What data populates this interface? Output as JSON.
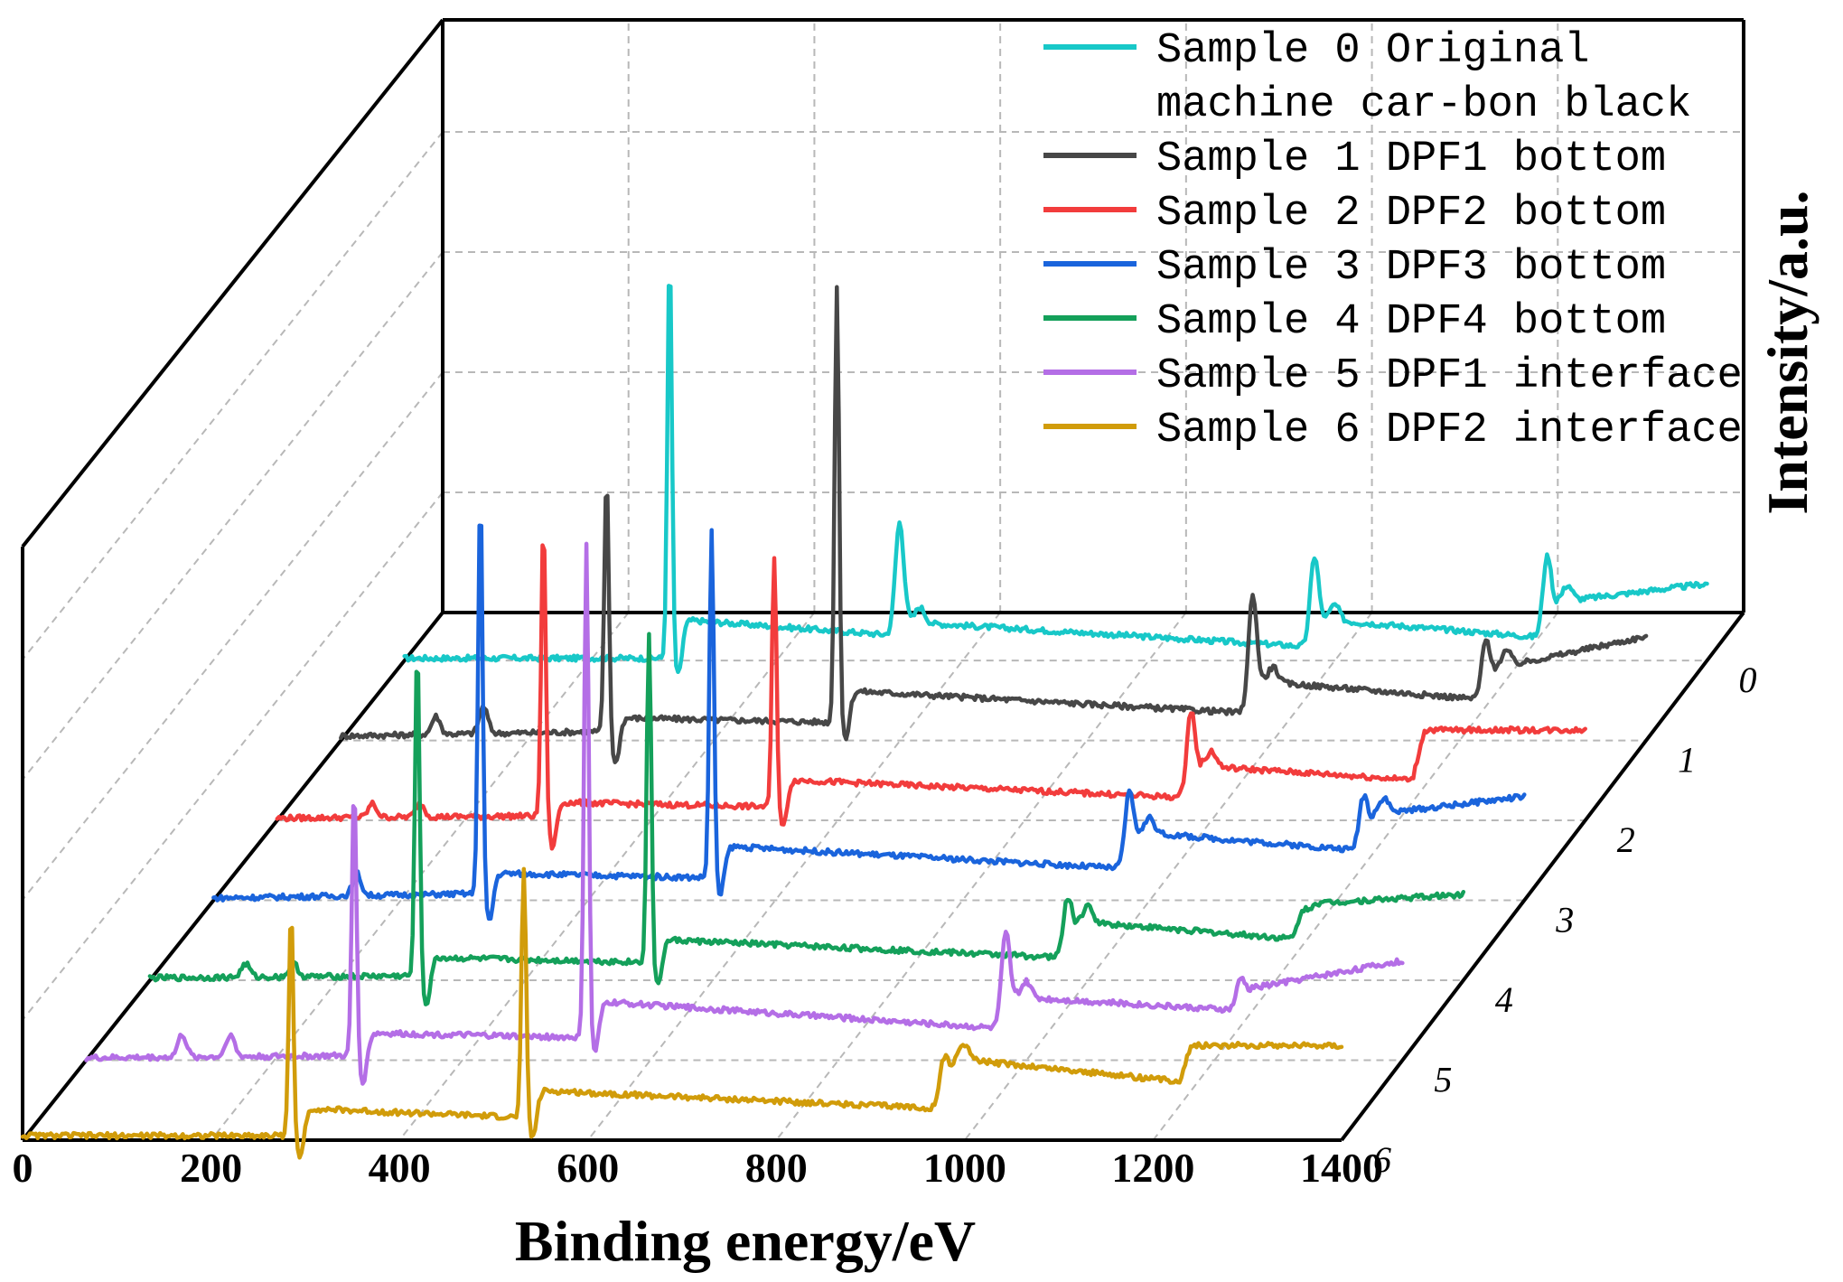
{
  "chart_data": {
    "type": "line",
    "subtype": "3d-waterfall",
    "title": "",
    "xlabel": "Binding energy/eV",
    "ylabel": "Intensity/a.u.",
    "xlim": [
      0,
      1400
    ],
    "x_ticks": [
      "0",
      "200",
      "400",
      "600",
      "800",
      "1000",
      "1200",
      "1400"
    ],
    "depth_ticks": [
      "0",
      "1",
      "2",
      "3",
      "4",
      "5",
      "6"
    ],
    "grid": true,
    "legend_position": "top-right",
    "series": [
      {
        "name": "Sample 0 Original machine car-bon black",
        "legend_lines": [
          "Sample 0 Original",
          "machine car-bon black"
        ],
        "color": "#18c8c8",
        "depth": 0,
        "peaks": [
          {
            "x": 285,
            "height": 9.0
          },
          {
            "x": 532,
            "height": 2.5
          },
          {
            "x": 978,
            "height": 2.0
          },
          {
            "x": 1228,
            "height": 1.8
          }
        ],
        "baseline_levels": [
          {
            "x": 0,
            "y": 0.05
          },
          {
            "x": 285,
            "y": 0.05
          },
          {
            "x": 300,
            "y": 0.9
          },
          {
            "x": 532,
            "y": 0.55
          },
          {
            "x": 540,
            "y": 0.85
          },
          {
            "x": 978,
            "y": 0.3
          },
          {
            "x": 990,
            "y": 0.9
          },
          {
            "x": 1228,
            "y": 0.5
          },
          {
            "x": 1240,
            "y": 1.3
          },
          {
            "x": 1400,
            "y": 1.7
          }
        ]
      },
      {
        "name": "Sample 1 DPF1 bottom",
        "legend_lines": [
          "Sample 1 DPF1 bottom"
        ],
        "color": "#474747",
        "depth": 1,
        "peaks": [
          {
            "x": 102,
            "height": 0.4
          },
          {
            "x": 153,
            "height": 0.6
          },
          {
            "x": 285,
            "height": 5.7
          },
          {
            "x": 532,
            "height": 9.7
          },
          {
            "x": 978,
            "height": 2.6
          },
          {
            "x": 1228,
            "height": 1.3
          }
        ],
        "baseline_levels": [
          {
            "x": 0,
            "y": 0.1
          },
          {
            "x": 285,
            "y": 0.2
          },
          {
            "x": 300,
            "y": 0.5
          },
          {
            "x": 532,
            "y": 0.4
          },
          {
            "x": 545,
            "y": 1.1
          },
          {
            "x": 978,
            "y": 0.6
          },
          {
            "x": 990,
            "y": 1.3
          },
          {
            "x": 1228,
            "y": 0.9
          },
          {
            "x": 1240,
            "y": 1.6
          },
          {
            "x": 1400,
            "y": 2.3
          }
        ]
      },
      {
        "name": "Sample 2 DPF2 bottom",
        "legend_lines": [
          "Sample 2 DPF2 bottom"
        ],
        "color": "#f23c3c",
        "depth": 2,
        "peaks": [
          {
            "x": 102,
            "height": 0.3
          },
          {
            "x": 153,
            "height": 0.3
          },
          {
            "x": 285,
            "height": 6.5
          },
          {
            "x": 532,
            "height": 5.6
          },
          {
            "x": 978,
            "height": 1.9
          }
        ],
        "baseline_levels": [
          {
            "x": 0,
            "y": 0.05
          },
          {
            "x": 285,
            "y": 0.1
          },
          {
            "x": 300,
            "y": 0.4
          },
          {
            "x": 532,
            "y": 0.3
          },
          {
            "x": 545,
            "y": 0.9
          },
          {
            "x": 978,
            "y": 0.5
          },
          {
            "x": 990,
            "y": 1.2
          },
          {
            "x": 1215,
            "y": 0.9
          },
          {
            "x": 1228,
            "y": 2.0
          },
          {
            "x": 1400,
            "y": 2.0
          }
        ]
      },
      {
        "name": "Sample 3 DPF3 bottom",
        "legend_lines": [
          "Sample 3 DPF3 bottom"
        ],
        "color": "#1a64dc",
        "depth": 3,
        "peaks": [
          {
            "x": 153,
            "height": 0.5
          },
          {
            "x": 285,
            "height": 8.9
          },
          {
            "x": 532,
            "height": 7.7
          },
          {
            "x": 978,
            "height": 1.7
          },
          {
            "x": 1228,
            "height": 1.2
          }
        ],
        "baseline_levels": [
          {
            "x": 0,
            "y": 0.05
          },
          {
            "x": 285,
            "y": 0.15
          },
          {
            "x": 300,
            "y": 0.6
          },
          {
            "x": 532,
            "y": 0.5
          },
          {
            "x": 545,
            "y": 1.2
          },
          {
            "x": 978,
            "y": 0.7
          },
          {
            "x": 990,
            "y": 1.5
          },
          {
            "x": 1228,
            "y": 1.1
          },
          {
            "x": 1240,
            "y": 1.9
          },
          {
            "x": 1400,
            "y": 2.3
          }
        ]
      },
      {
        "name": "Sample 4 DPF4 bottom",
        "legend_lines": [
          "Sample 4 DPF4 bottom"
        ],
        "color": "#14a05a",
        "depth": 4,
        "peaks": [
          {
            "x": 102,
            "height": 0.3
          },
          {
            "x": 153,
            "height": 0.3
          },
          {
            "x": 285,
            "height": 7.4
          },
          {
            "x": 532,
            "height": 7.3
          },
          {
            "x": 978,
            "height": 1.3
          },
          {
            "x": 1228,
            "height": 0.6
          }
        ],
        "baseline_levels": [
          {
            "x": 0,
            "y": 0.05
          },
          {
            "x": 285,
            "y": 0.1
          },
          {
            "x": 300,
            "y": 0.5
          },
          {
            "x": 532,
            "y": 0.4
          },
          {
            "x": 545,
            "y": 0.9
          },
          {
            "x": 978,
            "y": 0.5
          },
          {
            "x": 990,
            "y": 1.3
          },
          {
            "x": 1228,
            "y": 0.9
          },
          {
            "x": 1240,
            "y": 1.7
          },
          {
            "x": 1400,
            "y": 1.9
          }
        ]
      },
      {
        "name": "Sample 5 DPF1 interface",
        "legend_lines": [
          "Sample 5 DPF1 interface"
        ],
        "color": "#b46ee6",
        "depth": 5,
        "peaks": [
          {
            "x": 102,
            "height": 0.5
          },
          {
            "x": 153,
            "height": 0.5
          },
          {
            "x": 285,
            "height": 6.0
          },
          {
            "x": 532,
            "height": 11.0
          },
          {
            "x": 978,
            "height": 2.1
          },
          {
            "x": 1228,
            "height": 0.7
          }
        ],
        "baseline_levels": [
          {
            "x": 0,
            "y": 0.05
          },
          {
            "x": 285,
            "y": 0.1
          },
          {
            "x": 300,
            "y": 0.6
          },
          {
            "x": 532,
            "y": 0.5
          },
          {
            "x": 545,
            "y": 1.3
          },
          {
            "x": 978,
            "y": 0.7
          },
          {
            "x": 990,
            "y": 1.4
          },
          {
            "x": 1228,
            "y": 1.1
          },
          {
            "x": 1240,
            "y": 1.6
          },
          {
            "x": 1400,
            "y": 2.2
          }
        ]
      },
      {
        "name": "Sample 6 DPF2 interface",
        "legend_lines": [
          "Sample 6 DPF2 interface"
        ],
        "color": "#d19c0a",
        "depth": 6,
        "peaks": [
          {
            "x": 285,
            "height": 5.0
          },
          {
            "x": 532,
            "height": 5.6
          },
          {
            "x": 978,
            "height": 1.1
          }
        ],
        "baseline_levels": [
          {
            "x": 0,
            "y": 0.1
          },
          {
            "x": 285,
            "y": 0.1
          },
          {
            "x": 300,
            "y": 0.7
          },
          {
            "x": 532,
            "y": 0.5
          },
          {
            "x": 545,
            "y": 1.1
          },
          {
            "x": 978,
            "y": 0.7
          },
          {
            "x": 990,
            "y": 1.8
          },
          {
            "x": 1228,
            "y": 1.3
          },
          {
            "x": 1240,
            "y": 2.1
          },
          {
            "x": 1400,
            "y": 2.1
          }
        ]
      }
    ]
  }
}
